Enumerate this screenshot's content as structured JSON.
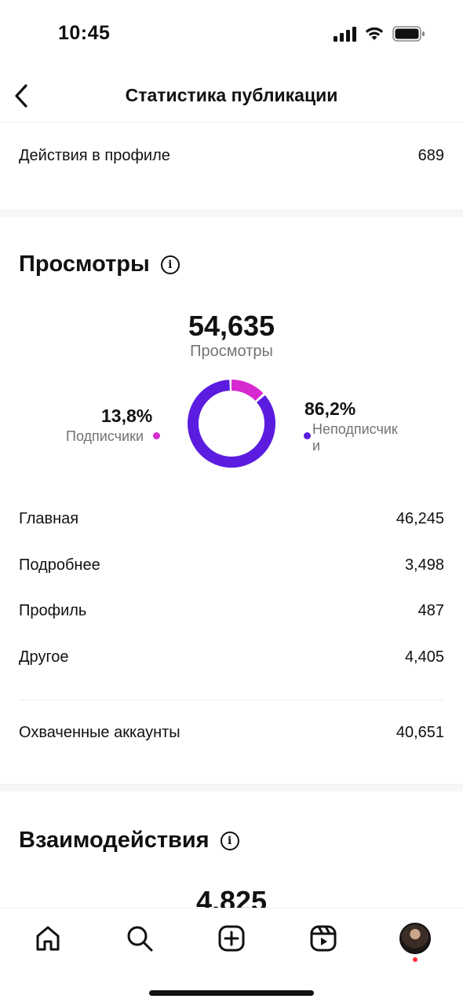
{
  "status_bar": {
    "time": "10:45"
  },
  "header": {
    "title": "Статистика публикации"
  },
  "profile_actions": {
    "label": "Действия в профиле",
    "value": "689"
  },
  "views": {
    "section_title": "Просмотры",
    "total": "54,635",
    "total_label": "Просмотры",
    "followers": {
      "percent": "13,8%",
      "label": "Подписчики",
      "fraction": 0.138,
      "color": "#d62ad0"
    },
    "non_followers": {
      "percent": "86,2%",
      "label_line1": "Неподписчик",
      "label_line2": "и",
      "fraction": 0.862,
      "color": "#5b1ce0"
    },
    "sources": [
      {
        "label": "Главная",
        "value": "46,245"
      },
      {
        "label": "Подробнее",
        "value": "3,498"
      },
      {
        "label": "Профиль",
        "value": "487"
      },
      {
        "label": "Другое",
        "value": "4,405"
      }
    ],
    "accounts_reached": {
      "label": "Охваченные аккаунты",
      "value": "40,651"
    }
  },
  "interactions": {
    "section_title": "Взаимодействия",
    "total": "4,825"
  },
  "bottom_nav": {
    "items": [
      {
        "icon": "home-icon"
      },
      {
        "icon": "search-icon"
      },
      {
        "icon": "create-icon"
      },
      {
        "icon": "reels-icon"
      },
      {
        "icon": "profile-avatar"
      }
    ]
  }
}
